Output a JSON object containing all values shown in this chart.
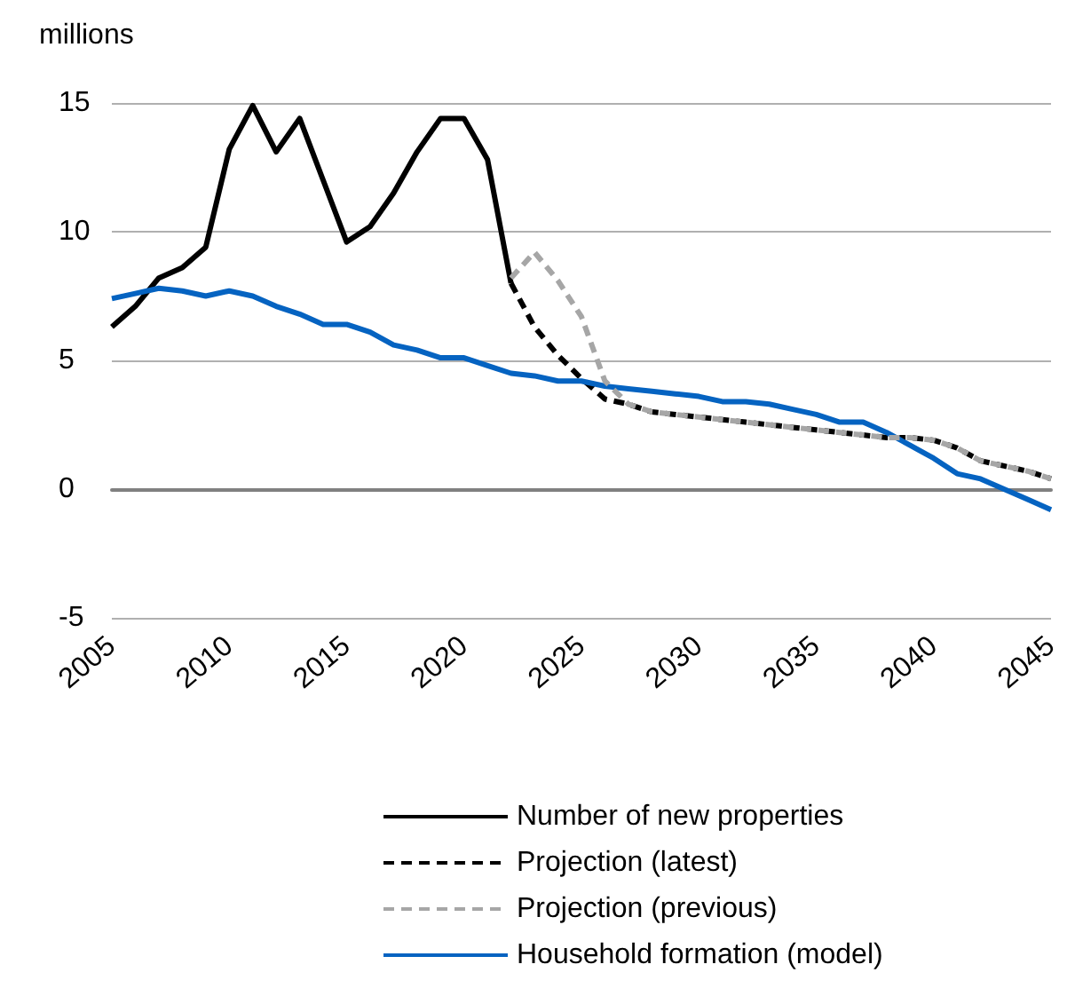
{
  "chart_data": {
    "type": "line",
    "ylabel": "millions",
    "xlim": [
      2005,
      2045
    ],
    "xticks": [
      2005,
      2010,
      2015,
      2020,
      2025,
      2030,
      2035,
      2040,
      2045
    ],
    "ylim": [
      -5,
      15
    ],
    "yticks": [
      -5,
      0,
      5,
      10,
      15
    ],
    "grid": "y",
    "legend": "bottom",
    "marker": "none",
    "series": [
      {
        "name": "Number of new properties",
        "color": "#000000",
        "line_style": "solid",
        "x": [
          2005,
          2006,
          2007,
          2008,
          2009,
          2010,
          2011,
          2012,
          2013,
          2014,
          2015,
          2016,
          2017,
          2018,
          2019,
          2020,
          2021,
          2022
        ],
        "values": [
          6.3,
          7.1,
          8.2,
          8.6,
          9.4,
          13.2,
          14.9,
          13.1,
          14.4,
          12.0,
          9.6,
          10.2,
          11.5,
          13.1,
          14.4,
          14.4,
          12.8,
          8.0
        ]
      },
      {
        "name": "Projection (latest)",
        "color": "#000000",
        "line_style": "dashed",
        "x": [
          2022,
          2023,
          2024,
          2025,
          2026,
          2027,
          2028,
          2029,
          2030,
          2031,
          2032,
          2033,
          2034,
          2035,
          2036,
          2037,
          2038,
          2039,
          2040,
          2041,
          2042,
          2043,
          2044,
          2045
        ],
        "values": [
          8.0,
          6.3,
          5.2,
          4.3,
          3.5,
          3.3,
          3.0,
          2.9,
          2.8,
          2.7,
          2.6,
          2.5,
          2.4,
          2.3,
          2.2,
          2.1,
          2.0,
          2.0,
          1.9,
          1.6,
          1.1,
          0.9,
          0.7,
          0.4
        ]
      },
      {
        "name": "Projection (previous)",
        "color": "#a6a6a6",
        "line_style": "dashed",
        "x": [
          2022,
          2023,
          2024,
          2025,
          2026,
          2027,
          2028,
          2029,
          2030,
          2031,
          2032,
          2033,
          2034,
          2035,
          2036,
          2037,
          2038,
          2039,
          2040,
          2041,
          2042,
          2043,
          2044,
          2045
        ],
        "values": [
          8.2,
          9.2,
          8.1,
          6.7,
          4.2,
          3.3,
          3.0,
          2.9,
          2.8,
          2.7,
          2.6,
          2.5,
          2.4,
          2.3,
          2.2,
          2.1,
          2.0,
          2.0,
          1.9,
          1.6,
          1.1,
          0.9,
          0.7,
          0.4
        ]
      },
      {
        "name": "Household formation (model)",
        "color": "#0563c1",
        "line_style": "solid",
        "x": [
          2005,
          2006,
          2007,
          2008,
          2009,
          2010,
          2011,
          2012,
          2013,
          2014,
          2015,
          2016,
          2017,
          2018,
          2019,
          2020,
          2021,
          2022,
          2023,
          2024,
          2025,
          2026,
          2027,
          2028,
          2029,
          2030,
          2031,
          2032,
          2033,
          2034,
          2035,
          2036,
          2037,
          2038,
          2039,
          2040,
          2041,
          2042,
          2043,
          2044,
          2045
        ],
        "values": [
          7.4,
          7.6,
          7.8,
          7.7,
          7.5,
          7.7,
          7.5,
          7.1,
          6.8,
          6.4,
          6.4,
          6.1,
          5.6,
          5.4,
          5.1,
          5.1,
          4.8,
          4.5,
          4.4,
          4.2,
          4.2,
          4.0,
          3.9,
          3.8,
          3.7,
          3.6,
          3.4,
          3.4,
          3.3,
          3.1,
          2.9,
          2.6,
          2.6,
          2.2,
          1.7,
          1.2,
          0.6,
          0.4,
          0.0,
          -0.4,
          -0.8
        ]
      }
    ]
  }
}
